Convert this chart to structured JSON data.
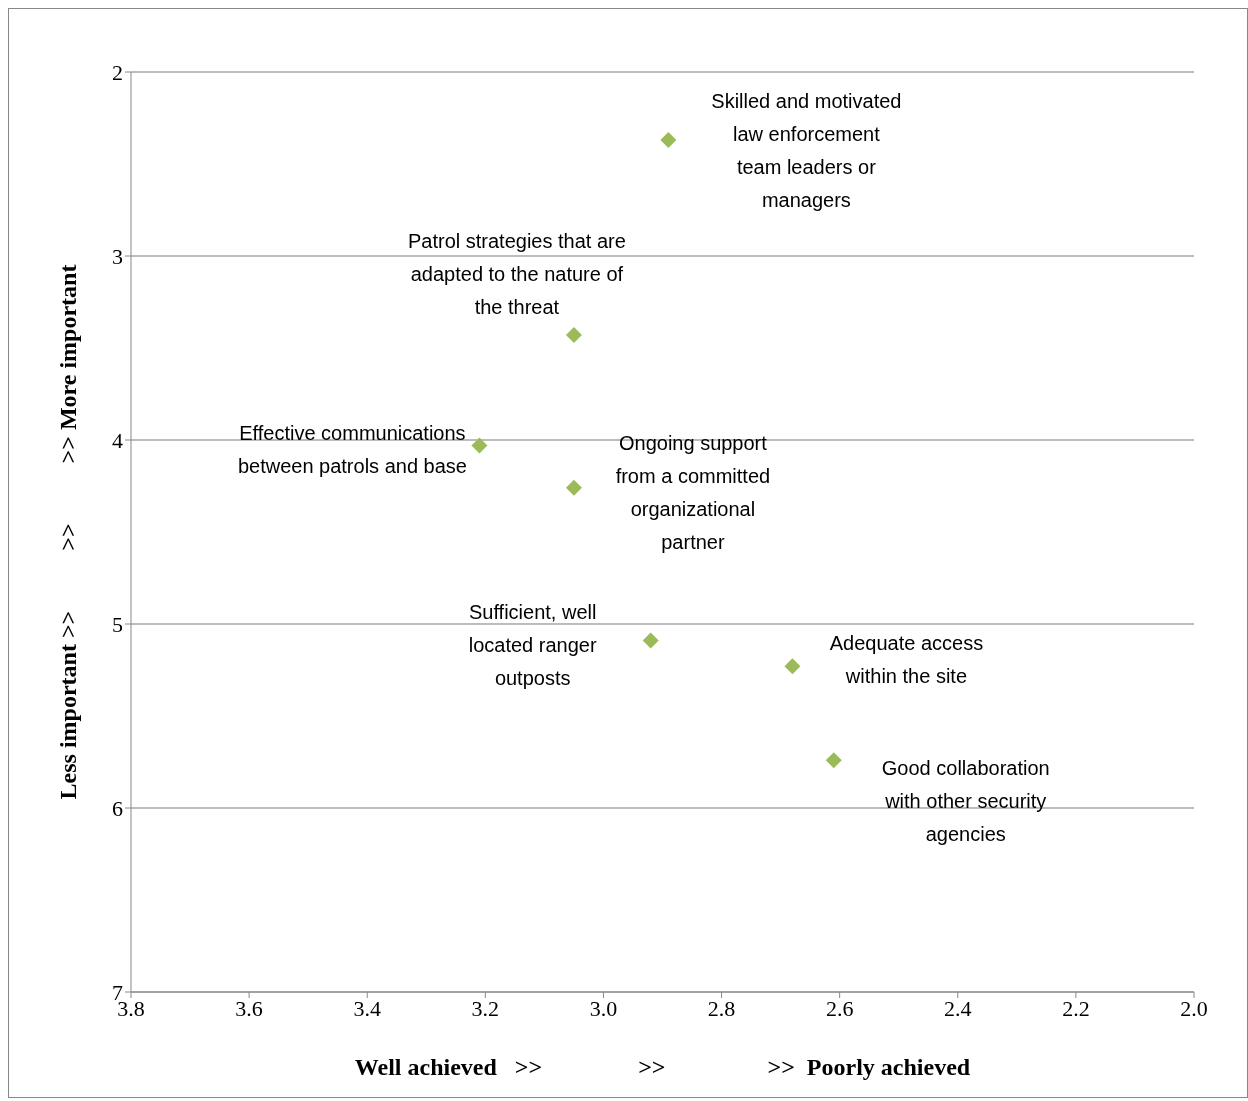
{
  "chart_data": {
    "type": "scatter",
    "xlabel": "Well achieved   >>                >>                 >>  Poorly achieved",
    "ylabel": "Less important >>          >>          >> More important",
    "x": [
      2.89,
      3.05,
      3.21,
      3.05,
      2.92,
      2.68,
      2.61
    ],
    "series": [
      {
        "color": "#9bbb59",
        "values": [
          2.37,
          3.43,
          4.03,
          4.26,
          5.09,
          5.23,
          5.74
        ]
      }
    ],
    "xlim": [
      3.8,
      2.0
    ],
    "xticks": [
      3.8,
      3.6,
      3.4,
      3.2,
      {
        "value": 3.0,
        "label": "3.0"
      },
      2.8,
      2.6,
      2.4,
      2.2,
      {
        "value": 2.0,
        "label": "2.0"
      }
    ],
    "ylim": [
      7,
      2
    ],
    "yticks": [
      2,
      3,
      4,
      5,
      6,
      7
    ],
    "grid": "y",
    "marker": "diamond",
    "legend": false,
    "annotations": [
      {
        "text": "Skilled and motivated law enforcement team leaders or managers",
        "x": 2.89,
        "y": 2.37
      },
      {
        "text": "Patrol strategies that are adapted to the nature of the threat",
        "x": 3.05,
        "y": 3.43
      },
      {
        "text": "Effective communications between patrols and base",
        "x": 3.21,
        "y": 4.03
      },
      {
        "text": "Ongoing support from a committed organizational partner",
        "x": 3.05,
        "y": 4.26
      },
      {
        "text": "Sufficient, well located ranger outposts",
        "x": 2.92,
        "y": 5.09
      },
      {
        "text": "Adequate access within the site",
        "x": 2.68,
        "y": 5.23
      },
      {
        "text": "Good collaboration with other security agencies",
        "x": 2.61,
        "y": 5.74
      }
    ]
  }
}
